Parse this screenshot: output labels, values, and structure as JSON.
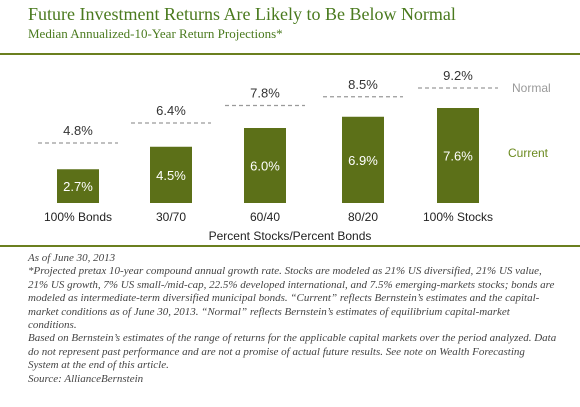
{
  "header": {
    "title": "Future Investment Returns Are Likely to Be Below Normal",
    "subtitle": "Median Annualized-10-Year Return Projections*"
  },
  "chart_data": {
    "type": "bar",
    "categories": [
      "100% Bonds",
      "30/70",
      "60/40",
      "80/20",
      "100% Stocks"
    ],
    "series": [
      {
        "name": "Current",
        "values": [
          2.7,
          4.5,
          6.0,
          6.9,
          7.6
        ]
      },
      {
        "name": "Normal",
        "values": [
          4.8,
          6.4,
          7.8,
          8.5,
          9.2
        ]
      }
    ],
    "value_labels": {
      "current": [
        "2.7%",
        "4.5%",
        "6.0%",
        "6.9%",
        "7.6%"
      ],
      "normal": [
        "4.8%",
        "6.4%",
        "7.8%",
        "8.5%",
        "9.2%"
      ]
    },
    "xlabel": "Percent Stocks/Percent Bonds",
    "ylabel": "",
    "ylim": [
      0,
      10
    ],
    "grid": false,
    "legend_placement": "right",
    "colors": {
      "current": "#5c7018",
      "normal": "#9a9a9a",
      "current_label": "#6b8a1f"
    }
  },
  "footnotes": [
    "As of June 30, 2013",
    "*Projected pretax 10-year compound annual growth rate. Stocks are modeled as 21% US diversified, 21% US value, 21% US growth, 7% US small-/mid-cap, 22.5% developed international, and 7.5% emerging-markets stocks; bonds are modeled as intermediate-term diversified municipal bonds. “Current” reflects Bernstein’s estimates and the capital-market conditions as of June 30, 2013. “Normal” reflects Bernstein’s estimates of equilibrium capital-market conditions.",
    "Based on Bernstein’s estimates of the range of returns for the applicable capital markets over the period analyzed. Data do not represent past performance and are not a promise of actual future results. See note on Wealth Forecasting System at the end of this article.",
    "Source: AllianceBernstein"
  ]
}
